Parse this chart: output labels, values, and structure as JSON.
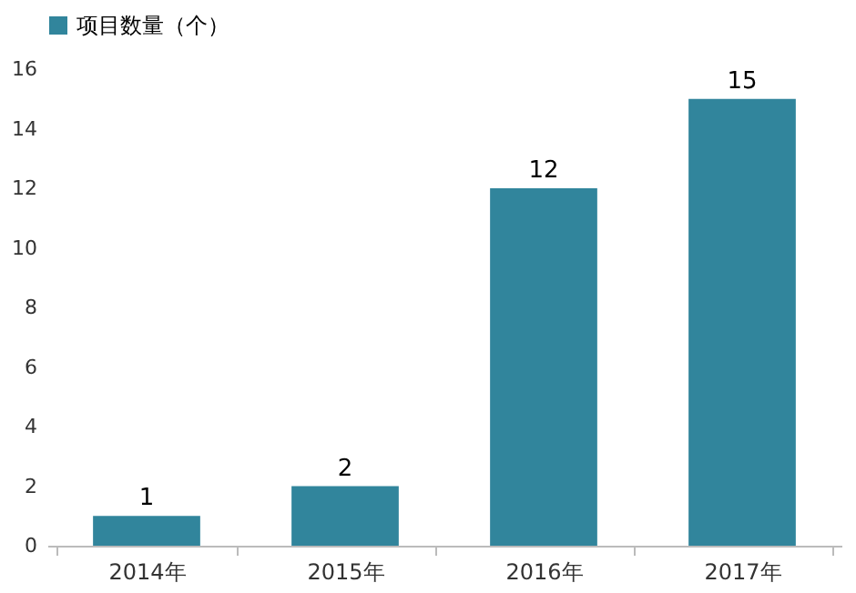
{
  "chart_data": {
    "type": "bar",
    "categories": [
      "2014年",
      "2015年",
      "2016年",
      "2017年"
    ],
    "series": [
      {
        "name": "项目数量（个）",
        "color": "#31859c",
        "values": [
          1,
          2,
          12,
          15
        ]
      }
    ],
    "ylim": [
      0,
      16
    ],
    "yticks": [
      0,
      2,
      4,
      6,
      8,
      10,
      12,
      14,
      16
    ],
    "grid": false,
    "legend": "top",
    "data_labels": true
  }
}
